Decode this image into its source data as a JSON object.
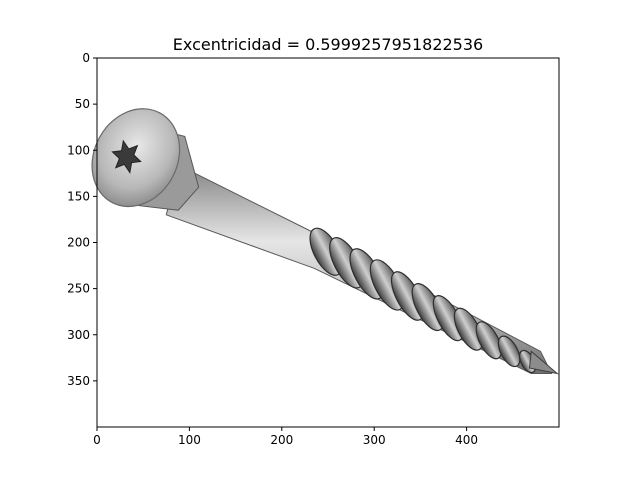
{
  "chart_data": {
    "type": "image",
    "title": "Excentricidad = 0.5999257951822536",
    "xlabel": "",
    "ylabel": "",
    "xlim": [
      0,
      500
    ],
    "ylim": [
      400,
      0
    ],
    "y_axis_inverted": true,
    "xticks": [
      0,
      100,
      200,
      300,
      400
    ],
    "yticks": [
      0,
      50,
      100,
      150,
      200,
      250,
      300,
      350
    ],
    "grid": false,
    "legend": "none",
    "image_content": "screw-photo",
    "colors": {
      "axes": "#000000",
      "background": "#ffffff",
      "metal_light": "#dcdcdc",
      "metal_mid": "#a8a8a8",
      "metal_dark": "#4a4a4a"
    }
  }
}
